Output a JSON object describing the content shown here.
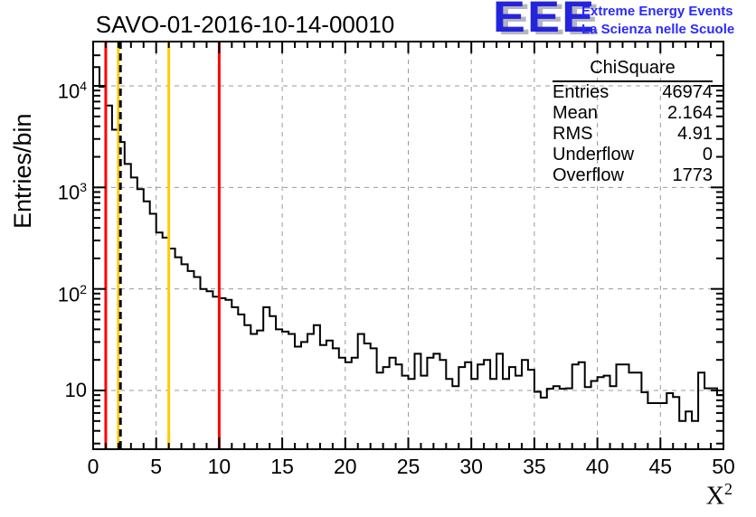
{
  "title": "SAVO-01-2016-10-14-00010",
  "logo": {
    "acronym": "EEE",
    "line1": "Extreme Energy Events",
    "line2": "La Scienza nelle Scuole",
    "blue": "#2424dd",
    "text_blue": "#2a2aff",
    "shadow_gray": "#b5b5bf"
  },
  "stats": {
    "header": "ChiSquare",
    "rows": [
      {
        "label": "Entries",
        "value": "46974"
      },
      {
        "label": "Mean",
        "value": "2.164"
      },
      {
        "label": "RMS",
        "value": "4.91"
      },
      {
        "label": "Underflow",
        "value": "0"
      },
      {
        "label": "Overflow",
        "value": "1773"
      }
    ]
  },
  "axes": {
    "y_label": "Entries/bin",
    "x_label_base": "X",
    "x_label_exp": "2",
    "x_ticks": [
      0,
      5,
      10,
      15,
      20,
      25,
      30,
      35,
      40,
      45,
      50
    ],
    "y_decade_exponents": [
      4,
      3,
      2,
      1
    ]
  },
  "colors": {
    "histogram": "#000000",
    "grid": "#999999",
    "frame": "#000000",
    "red_line": "#ff0000",
    "yellow_line": "#ffcc00",
    "mean_line": "#000000"
  },
  "chart_data": {
    "type": "bar",
    "subtype": "step-histogram",
    "title": "SAVO-01-2016-10-14-00010",
    "xlabel": "X^2",
    "ylabel": "Entries/bin",
    "x_range": [
      0,
      50
    ],
    "bin_width": 0.5,
    "y_scale": "log",
    "y_view_range": [
      2.6,
      27000
    ],
    "grid": "dashed gray at every x major tick and every y decade",
    "legend": "none",
    "values": [
      15300,
      9800,
      6400,
      3700,
      2800,
      1700,
      1250,
      960,
      730,
      550,
      360,
      320,
      250,
      205,
      175,
      150,
      131,
      100,
      95,
      84,
      81,
      78,
      66,
      56,
      44,
      36,
      39,
      66,
      54,
      40,
      38,
      36,
      27,
      30,
      36,
      44,
      28,
      31,
      26,
      21,
      19,
      21,
      36,
      29,
      26,
      15,
      17,
      21,
      18,
      14,
      13,
      23,
      14,
      21,
      23,
      20,
      13,
      11,
      17,
      19,
      13,
      18,
      20,
      13,
      23,
      13,
      17,
      14,
      20,
      16,
      9.7,
      8.5,
      10.4,
      11,
      10.4,
      10.5,
      18,
      19,
      10.8,
      12.4,
      13.5,
      14,
      11,
      18,
      18,
      15,
      15,
      9.6,
      7.5,
      7.5,
      7.5,
      9.4,
      8.6,
      5,
      6.2,
      5,
      15,
      10.5,
      10.5,
      9
    ],
    "marker_lines": [
      {
        "x": 1.0,
        "color": "#ff0000",
        "style": "solid",
        "name": "red-line-1"
      },
      {
        "x": 2.0,
        "color": "#ffcc00",
        "style": "solid",
        "name": "yellow-line-2"
      },
      {
        "x": 2.164,
        "color": "#000000",
        "style": "dashed",
        "name": "mean-dashed-line"
      },
      {
        "x": 6.0,
        "color": "#ffcc00",
        "style": "solid",
        "name": "yellow-line-6"
      },
      {
        "x": 10.0,
        "color": "#ff0000",
        "style": "solid",
        "name": "red-line-10"
      }
    ]
  }
}
